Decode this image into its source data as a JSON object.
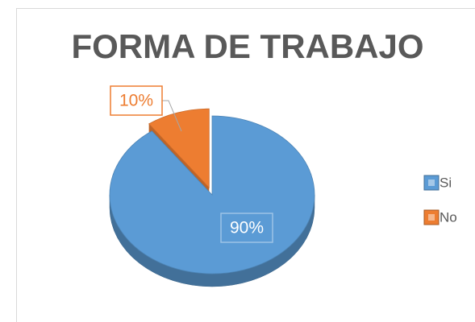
{
  "chart_data": {
    "type": "pie",
    "title": "FORMA DE TRABAJO",
    "categories": [
      "Si",
      "No"
    ],
    "values": [
      90,
      10
    ],
    "value_labels": [
      "90%",
      "10%"
    ],
    "colors": [
      "#5b9bd5",
      "#ed7d31"
    ],
    "legend": "right"
  }
}
